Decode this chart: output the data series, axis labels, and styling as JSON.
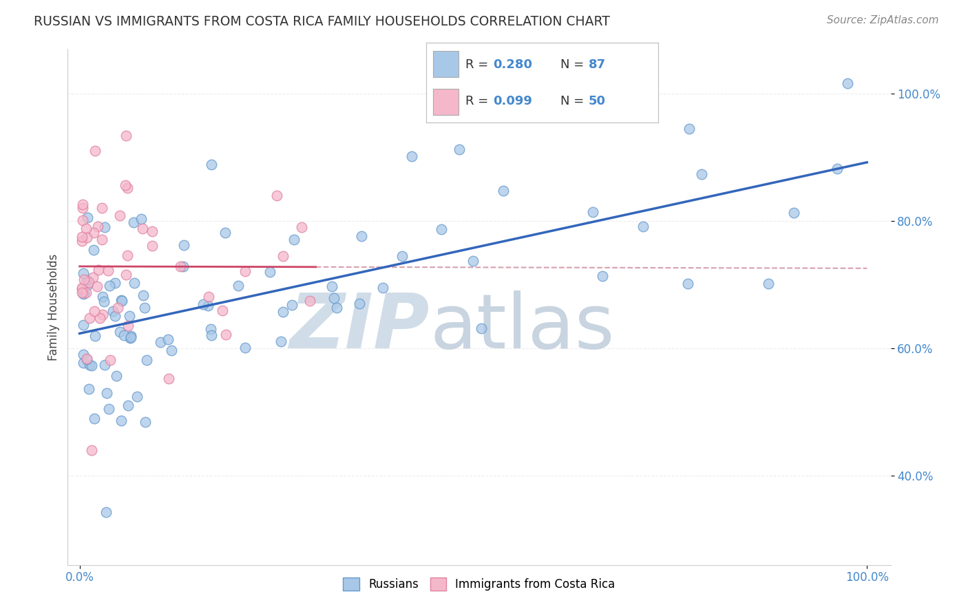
{
  "title": "RUSSIAN VS IMMIGRANTS FROM COSTA RICA FAMILY HOUSEHOLDS CORRELATION CHART",
  "source": "Source: ZipAtlas.com",
  "ylabel": "Family Households",
  "r_russian": 0.28,
  "n_russian": 87,
  "r_costa_rica": 0.099,
  "n_costa_rica": 50,
  "background_color": "#ffffff",
  "grid_color": "#e8e8e8",
  "russian_color": "#a8c8e8",
  "russian_edge_color": "#6699cc",
  "costa_rica_color": "#f5b8cb",
  "costa_rica_edge_color": "#e080a0",
  "russian_line_color": "#3366bb",
  "costa_rica_line_color": "#cc4466",
  "dashed_line_color": "#cc8899",
  "legend_color_russian": "#a8c8e8",
  "legend_color_cr": "#f5b8cb",
  "watermark_color_zip": "#c8d8e8",
  "watermark_color_atlas": "#b8ccd8"
}
